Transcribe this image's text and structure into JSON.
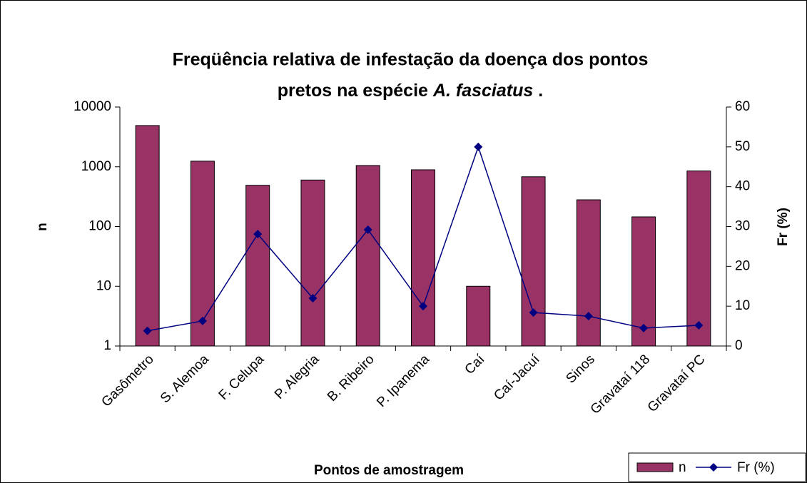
{
  "chart_data": {
    "type": "bar",
    "title": [
      "Freqüência relativa de infestação da doença dos pontos",
      "pretos na espécie",
      "A. fasciatus",
      "."
    ],
    "x_label": "Pontos de amostragem",
    "y_label": "n",
    "y2_label": "Fr (%)",
    "categories": [
      "Gasômetro",
      "S. Alemoa",
      "F. Celupa",
      "P. Alegria",
      "B. Ribeiro",
      "P. Ipanema",
      "Caí",
      "Caí-Jacuí",
      "Sinos",
      "Gravataí 118",
      "Gravataí PC"
    ],
    "series": [
      {
        "name": "n",
        "type": "bar",
        "color": "#993366",
        "values": [
          4900,
          1240,
          490,
          600,
          1050,
          890,
          10,
          680,
          280,
          145,
          850
        ]
      },
      {
        "name": "Fr (%)",
        "type": "line",
        "axis": "y2",
        "color": "#000080",
        "values": [
          3.8,
          6.3,
          28.1,
          12,
          29.2,
          10,
          50,
          8.4,
          7.5,
          4.5,
          5.2
        ]
      }
    ],
    "ylog": true,
    "ylim": [
      1,
      10000
    ],
    "yticks": [
      1,
      10,
      100,
      1000,
      10000
    ],
    "y2lim": [
      0,
      60
    ],
    "y2ticks": [
      0,
      10,
      20,
      30,
      40,
      50,
      60
    ],
    "grid": false,
    "legend": "bottom-right"
  }
}
